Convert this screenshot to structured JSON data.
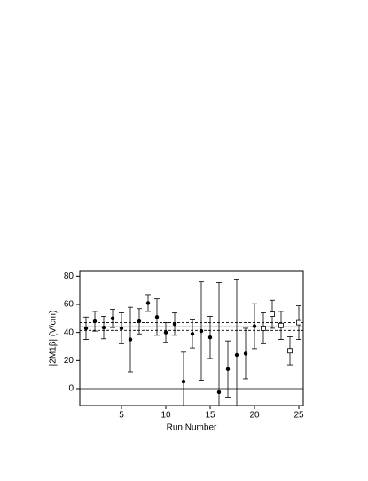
{
  "chart_data": {
    "type": "scatter",
    "xlabel": "Run Number",
    "ylabel": "|2M1β| (V/cm)",
    "xlim": [
      0.3,
      25.5
    ],
    "xticks": [
      5,
      10,
      15,
      20,
      25
    ],
    "ylim": [
      -12,
      84
    ],
    "yticks": [
      0,
      20,
      40,
      60,
      80
    ],
    "series": [
      {
        "marker": "filled-circle",
        "color": "#000000",
        "x": [
          1,
          2,
          3,
          4,
          5,
          6,
          7,
          8,
          9,
          10,
          11,
          12,
          13,
          14,
          15,
          16,
          17,
          18,
          19,
          20
        ],
        "values": [
          43,
          48,
          43.5,
          50,
          43,
          35,
          48,
          61,
          51,
          40,
          46,
          5,
          39,
          41,
          36.5,
          -2.5,
          14,
          24,
          25,
          44.5
        ],
        "errors": [
          8,
          7,
          8,
          6.5,
          11,
          23,
          9,
          6,
          13,
          7,
          8,
          21,
          10,
          35,
          15,
          78,
          20,
          54,
          18,
          16
        ]
      },
      {
        "marker": "open-square",
        "color": "#000000",
        "x": [
          21,
          22,
          23,
          24,
          25
        ],
        "values": [
          43,
          53,
          45,
          27,
          47
        ],
        "errors": [
          11,
          10,
          10,
          10,
          12
        ]
      }
    ],
    "hlines": [
      {
        "value": 0,
        "style": "solid"
      },
      {
        "value": 44,
        "style": "solid"
      },
      {
        "value": 41.5,
        "style": "dashed"
      },
      {
        "value": 47,
        "style": "dashed"
      }
    ]
  }
}
